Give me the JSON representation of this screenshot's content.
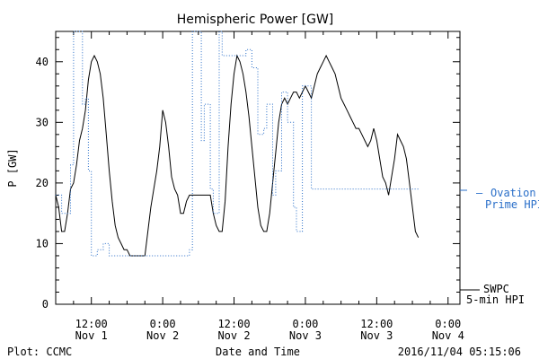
{
  "chart_data": {
    "type": "line",
    "title": "Hemispheric Power [GW]",
    "xlabel": "Date and Time",
    "ylabel": "P [GW]",
    "ylim": [
      0,
      45
    ],
    "xlim": [
      6,
      74
    ],
    "y_ticks": [
      0,
      10,
      20,
      30,
      40
    ],
    "x_ticks": [
      {
        "t": 12,
        "line1": "12:00",
        "line2": "Nov 1"
      },
      {
        "t": 24,
        "line1": "0:00",
        "line2": "Nov 2"
      },
      {
        "t": 36,
        "line1": "12:00",
        "line2": "Nov 2"
      },
      {
        "t": 48,
        "line1": "0:00",
        "line2": "Nov 3"
      },
      {
        "t": 60,
        "line1": "12:00",
        "line2": "Nov 3"
      },
      {
        "t": 72,
        "line1": "0:00",
        "line2": "Nov 4"
      }
    ],
    "x_unit": "hours since 2016-11-01 00:00",
    "grid": false,
    "legend_placement": "right",
    "series": [
      {
        "name": "SWPC 5-min HPI",
        "color": "#000000",
        "style": "solid",
        "points": [
          [
            6,
            18
          ],
          [
            6.5,
            16
          ],
          [
            7,
            12
          ],
          [
            7.5,
            12
          ],
          [
            8,
            15
          ],
          [
            8.5,
            19
          ],
          [
            9,
            20
          ],
          [
            9.5,
            23
          ],
          [
            10,
            27
          ],
          [
            10.5,
            29
          ],
          [
            11,
            32
          ],
          [
            11.5,
            37
          ],
          [
            12,
            40
          ],
          [
            12.5,
            41
          ],
          [
            13,
            40
          ],
          [
            13.5,
            38
          ],
          [
            14,
            34
          ],
          [
            14.5,
            28
          ],
          [
            15,
            22
          ],
          [
            15.5,
            17
          ],
          [
            16,
            13
          ],
          [
            16.5,
            11
          ],
          [
            17,
            10
          ],
          [
            17.5,
            9
          ],
          [
            18,
            9
          ],
          [
            18.5,
            8
          ],
          [
            19,
            8
          ],
          [
            19.5,
            8
          ],
          [
            20,
            8
          ],
          [
            20.5,
            8
          ],
          [
            21,
            8
          ],
          [
            21.5,
            12
          ],
          [
            22,
            16
          ],
          [
            22.5,
            19
          ],
          [
            23,
            22
          ],
          [
            23.5,
            26
          ],
          [
            24,
            32
          ],
          [
            24.5,
            30
          ],
          [
            25,
            26
          ],
          [
            25.5,
            21
          ],
          [
            26,
            19
          ],
          [
            26.5,
            18
          ],
          [
            27,
            15
          ],
          [
            27.5,
            15
          ],
          [
            28,
            17
          ],
          [
            28.5,
            18
          ],
          [
            29,
            18
          ],
          [
            29.5,
            18
          ],
          [
            30,
            18
          ],
          [
            30.5,
            18
          ],
          [
            31,
            18
          ],
          [
            31.5,
            18
          ],
          [
            32,
            18
          ],
          [
            32.5,
            15
          ],
          [
            33,
            13
          ],
          [
            33.5,
            12
          ],
          [
            34,
            12
          ],
          [
            34.5,
            17
          ],
          [
            35,
            26
          ],
          [
            35.5,
            33
          ],
          [
            36,
            38
          ],
          [
            36.5,
            41
          ],
          [
            37,
            40
          ],
          [
            37.5,
            38
          ],
          [
            38,
            35
          ],
          [
            38.5,
            31
          ],
          [
            39,
            26
          ],
          [
            39.5,
            21
          ],
          [
            40,
            16
          ],
          [
            40.5,
            13
          ],
          [
            41,
            12
          ],
          [
            41.5,
            12
          ],
          [
            42,
            15
          ],
          [
            42.5,
            20
          ],
          [
            43,
            25
          ],
          [
            43.5,
            30
          ],
          [
            44,
            33
          ],
          [
            44.5,
            34
          ],
          [
            45,
            33
          ],
          [
            45.5,
            34
          ],
          [
            46,
            35
          ],
          [
            46.5,
            35
          ],
          [
            47,
            34
          ],
          [
            47.5,
            35
          ],
          [
            48,
            36
          ],
          [
            48.5,
            35
          ],
          [
            49,
            34
          ],
          [
            49.5,
            36
          ],
          [
            50,
            38
          ],
          [
            50.5,
            39
          ],
          [
            51,
            40
          ],
          [
            51.5,
            41
          ],
          [
            52,
            40
          ],
          [
            52.5,
            39
          ],
          [
            53,
            38
          ],
          [
            53.5,
            36
          ],
          [
            54,
            34
          ],
          [
            54.5,
            33
          ],
          [
            55,
            32
          ],
          [
            55.5,
            31
          ],
          [
            56,
            30
          ],
          [
            56.5,
            29
          ],
          [
            57,
            29
          ],
          [
            57.5,
            28
          ],
          [
            58,
            27
          ],
          [
            58.5,
            26
          ],
          [
            59,
            27
          ],
          [
            59.5,
            29
          ],
          [
            60,
            27
          ],
          [
            60.5,
            24
          ],
          [
            61,
            21
          ],
          [
            61.5,
            20
          ],
          [
            62,
            18
          ],
          [
            62.5,
            21
          ],
          [
            63,
            24
          ],
          [
            63.5,
            28
          ],
          [
            64,
            27
          ],
          [
            64.5,
            26
          ],
          [
            65,
            24
          ],
          [
            65.5,
            20
          ],
          [
            66,
            16
          ],
          [
            66.5,
            12
          ],
          [
            67,
            11
          ]
        ]
      },
      {
        "name": "Ovation Prime HPI",
        "color": "#2a6fc9",
        "style": "dotted",
        "points": [
          [
            6,
            18
          ],
          [
            7,
            18
          ],
          [
            7,
            15
          ],
          [
            8.5,
            15
          ],
          [
            8.5,
            23
          ],
          [
            9,
            23
          ],
          [
            9,
            45
          ],
          [
            10.5,
            45
          ],
          [
            10.5,
            33
          ],
          [
            11,
            33
          ],
          [
            11,
            34
          ],
          [
            11.5,
            34
          ],
          [
            11.5,
            22
          ],
          [
            12,
            22
          ],
          [
            12,
            8
          ],
          [
            13,
            8
          ],
          [
            13,
            9
          ],
          [
            14,
            9
          ],
          [
            14,
            10
          ],
          [
            15,
            10
          ],
          [
            15,
            8
          ],
          [
            16,
            8
          ],
          [
            16,
            8
          ],
          [
            28.5,
            8
          ],
          [
            28.5,
            9
          ],
          [
            29,
            9
          ],
          [
            29,
            45
          ],
          [
            30.5,
            45
          ],
          [
            30.5,
            27
          ],
          [
            31,
            27
          ],
          [
            31,
            33
          ],
          [
            32,
            33
          ],
          [
            32,
            19
          ],
          [
            32.5,
            19
          ],
          [
            32.5,
            15
          ],
          [
            33.5,
            15
          ],
          [
            33.5,
            45
          ],
          [
            34,
            45
          ],
          [
            34,
            41
          ],
          [
            38,
            41
          ],
          [
            38,
            42
          ],
          [
            39,
            42
          ],
          [
            39,
            39
          ],
          [
            40,
            39
          ],
          [
            40,
            28
          ],
          [
            41,
            28
          ],
          [
            41,
            29
          ],
          [
            41.5,
            29
          ],
          [
            41.5,
            33
          ],
          [
            42.5,
            33
          ],
          [
            42.5,
            18
          ],
          [
            43,
            18
          ],
          [
            43,
            22
          ],
          [
            44,
            22
          ],
          [
            44,
            35
          ],
          [
            45,
            35
          ],
          [
            45,
            30
          ],
          [
            46,
            30
          ],
          [
            46,
            16
          ],
          [
            46.5,
            16
          ],
          [
            46.5,
            12
          ],
          [
            47.5,
            12
          ],
          [
            47.5,
            36
          ],
          [
            49,
            36
          ],
          [
            49,
            19
          ],
          [
            67,
            19
          ]
        ]
      }
    ],
    "legend": {
      "swpc_line1": "SWPC",
      "swpc_line2": "5-min HPI",
      "ovation_line1": "Ovation",
      "ovation_line2": "Prime HPI",
      "ovation_marker": "—"
    }
  },
  "footer": {
    "left": "Plot: CCMC",
    "center": "Date and Time",
    "right": "2016/11/04 05:15:06"
  }
}
